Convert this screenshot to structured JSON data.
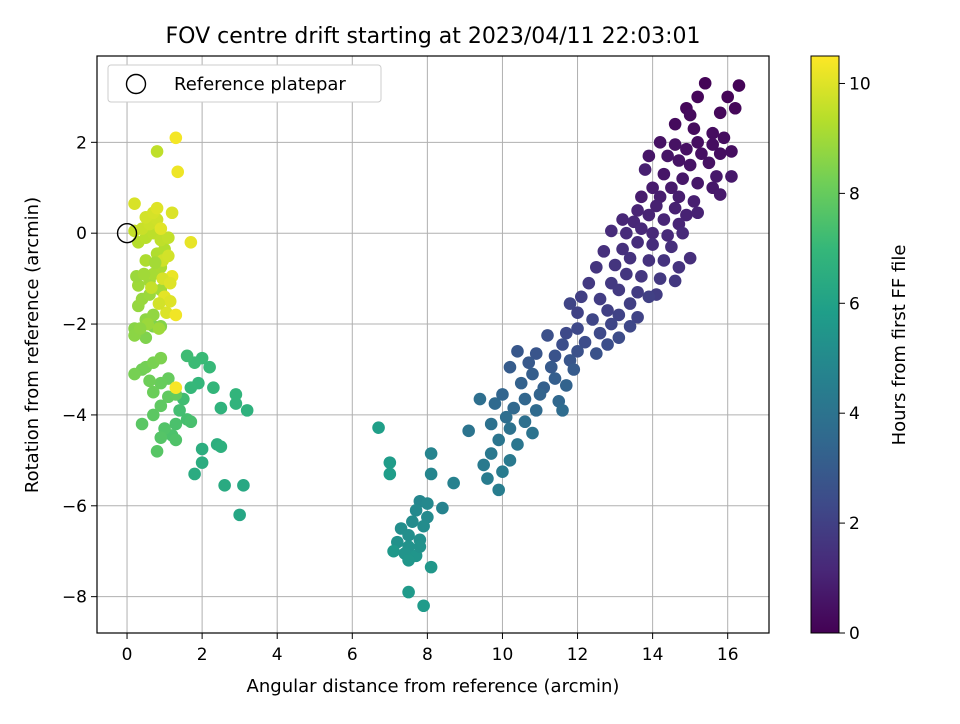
{
  "chart_data": {
    "type": "scatter",
    "title": "FOV centre drift starting at 2023/04/11 22:03:01",
    "xlabel": "Angular distance from reference (arcmin)",
    "ylabel": "Rotation from reference (arcmin)",
    "colorbar_label": "Hours from first FF file",
    "colormap": "viridis",
    "xlim": [
      -0.8,
      17.1
    ],
    "ylim": [
      -8.8,
      3.9
    ],
    "xticks": [
      0,
      2,
      4,
      6,
      8,
      10,
      12,
      14,
      16
    ],
    "yticks": [
      -8,
      -6,
      -4,
      -2,
      0,
      2
    ],
    "color_range": [
      0,
      10.5
    ],
    "colorbar_ticks": [
      0,
      2,
      4,
      6,
      8,
      10
    ],
    "grid": true,
    "legend": {
      "position": "top-left",
      "entries": [
        "Reference platepar"
      ]
    },
    "reference_point": {
      "x": 0,
      "y": 0,
      "label": "Reference platepar"
    },
    "points": [
      [
        15.4,
        3.3,
        0.1
      ],
      [
        16.3,
        3.25,
        0.1
      ],
      [
        16.0,
        3.0,
        0.1
      ],
      [
        15.2,
        3.0,
        0.15
      ],
      [
        14.9,
        2.75,
        0.2
      ],
      [
        15.8,
        2.65,
        0.2
      ],
      [
        16.2,
        2.75,
        0.2
      ],
      [
        15.0,
        2.6,
        0.3
      ],
      [
        14.6,
        2.4,
        0.3
      ],
      [
        15.1,
        2.3,
        0.3
      ],
      [
        15.6,
        2.2,
        0.35
      ],
      [
        15.9,
        2.1,
        0.35
      ],
      [
        15.2,
        2.0,
        0.4
      ],
      [
        15.6,
        1.95,
        0.4
      ],
      [
        16.1,
        1.8,
        0.4
      ],
      [
        15.8,
        1.75,
        0.4
      ],
      [
        15.3,
        1.75,
        0.45
      ],
      [
        14.9,
        1.85,
        0.45
      ],
      [
        14.6,
        1.95,
        0.5
      ],
      [
        14.2,
        2.0,
        0.5
      ],
      [
        15.5,
        1.55,
        0.5
      ],
      [
        15.0,
        1.5,
        0.55
      ],
      [
        14.7,
        1.6,
        0.55
      ],
      [
        14.4,
        1.7,
        0.6
      ],
      [
        13.9,
        1.7,
        0.6
      ],
      [
        14.3,
        1.3,
        0.6
      ],
      [
        14.8,
        1.2,
        0.65
      ],
      [
        15.2,
        1.1,
        0.65
      ],
      [
        15.7,
        1.25,
        0.7
      ],
      [
        16.1,
        1.25,
        0.7
      ],
      [
        15.6,
        1.0,
        0.7
      ],
      [
        15.8,
        0.85,
        0.75
      ],
      [
        14.5,
        1.0,
        0.75
      ],
      [
        14.0,
        1.0,
        0.8
      ],
      [
        13.7,
        0.8,
        0.8
      ],
      [
        14.2,
        0.8,
        0.85
      ],
      [
        14.7,
        0.8,
        0.85
      ],
      [
        15.1,
        0.7,
        0.9
      ],
      [
        13.8,
        1.4,
        0.9
      ],
      [
        14.1,
        0.6,
        0.95
      ],
      [
        14.6,
        0.55,
        0.95
      ],
      [
        14.9,
        0.4,
        1.0
      ],
      [
        15.2,
        0.45,
        1.0
      ],
      [
        13.6,
        0.5,
        1.05
      ],
      [
        13.9,
        0.4,
        1.05
      ],
      [
        14.3,
        0.3,
        1.1
      ],
      [
        14.7,
        0.2,
        1.1
      ],
      [
        13.5,
        0.25,
        1.15
      ],
      [
        13.2,
        0.3,
        1.15
      ],
      [
        13.7,
        0.1,
        1.2
      ],
      [
        14.0,
        0.0,
        1.2
      ],
      [
        14.4,
        -0.05,
        1.25
      ],
      [
        14.8,
        0.0,
        1.25
      ],
      [
        13.3,
        0.0,
        1.3
      ],
      [
        12.9,
        0.05,
        1.3
      ],
      [
        13.6,
        -0.2,
        1.35
      ],
      [
        14.0,
        -0.25,
        1.35
      ],
      [
        14.5,
        -0.3,
        1.4
      ],
      [
        15.0,
        -0.55,
        1.4
      ],
      [
        13.2,
        -0.35,
        1.45
      ],
      [
        12.7,
        -0.4,
        1.45
      ],
      [
        13.4,
        -0.55,
        1.5
      ],
      [
        13.9,
        -0.6,
        1.5
      ],
      [
        14.3,
        -0.6,
        1.55
      ],
      [
        14.7,
        -0.75,
        1.55
      ],
      [
        13.0,
        -0.7,
        1.6
      ],
      [
        12.5,
        -0.75,
        1.6
      ],
      [
        13.3,
        -0.9,
        1.65
      ],
      [
        13.7,
        -0.95,
        1.65
      ],
      [
        14.2,
        -1.0,
        1.7
      ],
      [
        14.6,
        -1.05,
        1.7
      ],
      [
        12.9,
        -1.1,
        1.75
      ],
      [
        12.3,
        -1.1,
        1.75
      ],
      [
        13.1,
        -1.25,
        1.8
      ],
      [
        13.6,
        -1.3,
        1.85
      ],
      [
        14.1,
        -1.35,
        1.85
      ],
      [
        12.6,
        -1.45,
        1.9
      ],
      [
        12.1,
        -1.4,
        1.95
      ],
      [
        13.4,
        -1.55,
        1.95
      ],
      [
        13.9,
        -1.4,
        2.0
      ],
      [
        12.8,
        -1.7,
        2.0
      ],
      [
        12.0,
        -1.75,
        2.05
      ],
      [
        13.1,
        -1.8,
        2.1
      ],
      [
        13.6,
        -1.85,
        2.1
      ],
      [
        11.8,
        -1.55,
        2.15
      ],
      [
        12.4,
        -1.9,
        2.2
      ],
      [
        12.9,
        -2.0,
        2.2
      ],
      [
        13.4,
        -2.05,
        2.25
      ],
      [
        12.0,
        -2.1,
        2.3
      ],
      [
        11.7,
        -2.2,
        2.3
      ],
      [
        12.6,
        -2.2,
        2.35
      ],
      [
        13.1,
        -2.3,
        2.4
      ],
      [
        12.2,
        -2.4,
        2.45
      ],
      [
        11.6,
        -2.45,
        2.5
      ],
      [
        12.8,
        -2.45,
        2.5
      ],
      [
        11.2,
        -2.25,
        2.55
      ],
      [
        12.0,
        -2.6,
        2.6
      ],
      [
        12.5,
        -2.65,
        2.65
      ],
      [
        11.4,
        -2.7,
        2.7
      ],
      [
        10.9,
        -2.65,
        2.75
      ],
      [
        11.8,
        -2.8,
        2.8
      ],
      [
        10.4,
        -2.6,
        2.85
      ],
      [
        10.7,
        -2.85,
        2.9
      ],
      [
        11.3,
        -2.95,
        2.95
      ],
      [
        11.9,
        -3.0,
        3.0
      ],
      [
        10.2,
        -2.95,
        3.05
      ],
      [
        10.8,
        -3.1,
        3.1
      ],
      [
        11.4,
        -3.2,
        3.15
      ],
      [
        11.1,
        -3.4,
        3.2
      ],
      [
        10.5,
        -3.3,
        3.25
      ],
      [
        11.7,
        -3.35,
        3.3
      ],
      [
        11.0,
        -3.55,
        3.35
      ],
      [
        10.0,
        -3.55,
        3.4
      ],
      [
        10.6,
        -3.65,
        3.45
      ],
      [
        11.5,
        -3.7,
        3.5
      ],
      [
        10.3,
        -3.85,
        3.55
      ],
      [
        9.8,
        -3.75,
        3.6
      ],
      [
        10.9,
        -3.9,
        3.65
      ],
      [
        11.6,
        -3.9,
        3.7
      ],
      [
        10.1,
        -4.05,
        3.75
      ],
      [
        9.4,
        -3.65,
        3.8
      ],
      [
        10.6,
        -4.15,
        3.85
      ],
      [
        9.7,
        -4.2,
        3.9
      ],
      [
        10.2,
        -4.3,
        3.95
      ],
      [
        10.8,
        -4.4,
        4.0
      ],
      [
        9.1,
        -4.35,
        4.05
      ],
      [
        9.9,
        -4.55,
        4.1
      ],
      [
        10.4,
        -4.65,
        4.15
      ],
      [
        9.7,
        -4.85,
        4.2
      ],
      [
        10.2,
        -5.0,
        4.25
      ],
      [
        9.5,
        -5.1,
        4.3
      ],
      [
        10.0,
        -5.25,
        4.35
      ],
      [
        9.6,
        -5.4,
        4.4
      ],
      [
        9.9,
        -5.65,
        4.45
      ],
      [
        8.7,
        -5.5,
        4.6
      ],
      [
        8.4,
        -6.05,
        4.7
      ],
      [
        8.1,
        -4.85,
        4.75
      ],
      [
        8.1,
        -5.3,
        4.8
      ],
      [
        7.8,
        -5.9,
        4.85
      ],
      [
        8.0,
        -5.95,
        4.9
      ],
      [
        7.7,
        -6.1,
        4.95
      ],
      [
        8.0,
        -6.25,
        5.0
      ],
      [
        7.6,
        -6.35,
        5.05
      ],
      [
        7.9,
        -6.45,
        5.1
      ],
      [
        7.3,
        -6.5,
        5.15
      ],
      [
        7.5,
        -6.65,
        5.2
      ],
      [
        7.8,
        -6.75,
        5.25
      ],
      [
        7.2,
        -6.8,
        5.3
      ],
      [
        7.5,
        -6.9,
        5.35
      ],
      [
        7.4,
        -7.05,
        5.4
      ],
      [
        7.7,
        -7.1,
        5.45
      ],
      [
        7.5,
        -7.2,
        5.5
      ],
      [
        8.1,
        -7.35,
        5.55
      ],
      [
        7.1,
        -7.0,
        5.6
      ],
      [
        7.5,
        -7.9,
        5.65
      ],
      [
        7.9,
        -8.2,
        5.7
      ],
      [
        7.0,
        -5.05,
        5.75
      ],
      [
        7.0,
        -5.3,
        5.8
      ],
      [
        6.7,
        -4.28,
        5.9
      ],
      [
        7.8,
        -6.9,
        5.35
      ],
      [
        3.0,
        -6.2,
        6.2
      ],
      [
        3.1,
        -5.55,
        6.3
      ],
      [
        2.6,
        -5.55,
        6.4
      ],
      [
        1.8,
        -5.3,
        6.45
      ],
      [
        2.0,
        -5.05,
        6.5
      ],
      [
        2.0,
        -4.75,
        6.55
      ],
      [
        2.4,
        -4.65,
        6.6
      ],
      [
        2.5,
        -4.7,
        6.65
      ],
      [
        3.2,
        -3.9,
        6.7
      ],
      [
        2.5,
        -3.85,
        6.75
      ],
      [
        2.9,
        -3.75,
        6.8
      ],
      [
        2.9,
        -3.55,
        6.85
      ],
      [
        2.3,
        -3.4,
        6.9
      ],
      [
        1.9,
        -3.3,
        6.95
      ],
      [
        1.7,
        -3.4,
        7.0
      ],
      [
        2.2,
        -2.95,
        7.05
      ],
      [
        2.0,
        -2.75,
        7.1
      ],
      [
        1.8,
        -2.85,
        7.15
      ],
      [
        1.6,
        -2.7,
        7.2
      ],
      [
        1.5,
        -3.65,
        7.25
      ],
      [
        1.4,
        -3.9,
        7.3
      ],
      [
        1.6,
        -4.1,
        7.35
      ],
      [
        1.7,
        -4.15,
        7.4
      ],
      [
        1.3,
        -4.2,
        7.45
      ],
      [
        1.2,
        -4.45,
        7.5
      ],
      [
        1.3,
        -4.55,
        7.55
      ],
      [
        1.0,
        -4.3,
        7.6
      ],
      [
        0.9,
        -4.5,
        7.65
      ],
      [
        0.8,
        -4.8,
        7.7
      ],
      [
        0.4,
        -4.2,
        7.75
      ],
      [
        0.7,
        -4.0,
        7.8
      ],
      [
        0.9,
        -3.8,
        7.85
      ],
      [
        1.1,
        -3.6,
        7.9
      ],
      [
        1.3,
        -3.55,
        7.95
      ],
      [
        1.1,
        -3.2,
        8.0
      ],
      [
        0.9,
        -3.3,
        8.05
      ],
      [
        0.7,
        -3.5,
        8.1
      ],
      [
        0.6,
        -3.25,
        8.15
      ],
      [
        0.4,
        -3.0,
        8.2
      ],
      [
        0.5,
        -2.95,
        8.25
      ],
      [
        0.2,
        -3.1,
        8.3
      ],
      [
        0.7,
        -2.85,
        8.35
      ],
      [
        0.9,
        -2.75,
        8.4
      ],
      [
        0.5,
        -2.3,
        8.45
      ],
      [
        0.7,
        -2.05,
        8.5
      ],
      [
        0.9,
        -2.05,
        8.55
      ],
      [
        0.2,
        -2.1,
        8.6
      ],
      [
        0.2,
        -2.25,
        8.65
      ],
      [
        0.5,
        -1.9,
        8.7
      ],
      [
        0.7,
        -1.8,
        8.75
      ],
      [
        0.3,
        -1.6,
        8.8
      ],
      [
        0.4,
        -1.45,
        8.85
      ],
      [
        0.6,
        -1.35,
        8.9
      ],
      [
        0.3,
        -1.15,
        8.95
      ],
      [
        0.6,
        -1.05,
        9.0
      ],
      [
        0.9,
        -1.25,
        9.05
      ],
      [
        0.7,
        -0.9,
        9.1
      ],
      [
        0.9,
        -0.75,
        9.15
      ],
      [
        0.5,
        -0.6,
        9.2
      ],
      [
        0.8,
        -0.45,
        9.25
      ],
      [
        1.0,
        -0.35,
        9.3
      ],
      [
        0.3,
        -0.2,
        9.35
      ],
      [
        0.5,
        -0.1,
        9.4
      ],
      [
        0.7,
        0.0,
        9.45
      ],
      [
        0.9,
        -0.15,
        9.5
      ],
      [
        1.1,
        -0.1,
        9.55
      ],
      [
        0.2,
        0.05,
        9.6
      ],
      [
        0.4,
        0.1,
        9.65
      ],
      [
        0.6,
        0.2,
        9.7
      ],
      [
        0.8,
        0.3,
        9.75
      ],
      [
        0.5,
        0.35,
        9.8
      ],
      [
        0.7,
        0.45,
        9.85
      ],
      [
        0.2,
        0.65,
        9.9
      ],
      [
        1.2,
        0.45,
        9.95
      ],
      [
        0.8,
        0.55,
        10.0
      ],
      [
        0.9,
        0.1,
        10.05
      ],
      [
        1.7,
        -0.2,
        10.15
      ],
      [
        1.35,
        1.35,
        10.25
      ],
      [
        1.2,
        -0.95,
        10.2
      ],
      [
        1.0,
        -1.4,
        10.1
      ],
      [
        1.15,
        -1.5,
        10.0
      ],
      [
        1.05,
        -1.75,
        9.95
      ],
      [
        1.3,
        -1.8,
        10.3
      ],
      [
        0.8,
        1.8,
        9.5
      ],
      [
        1.3,
        2.1,
        10.35
      ],
      [
        1.3,
        -3.4,
        10.4
      ],
      [
        0.95,
        -1.0,
        9.9
      ],
      [
        1.15,
        -1.1,
        10.0
      ],
      [
        0.85,
        -1.55,
        9.8
      ],
      [
        0.65,
        -1.2,
        9.6
      ],
      [
        0.95,
        -0.6,
        9.75
      ],
      [
        1.1,
        -0.5,
        9.8
      ],
      [
        0.55,
        -2.0,
        8.9
      ],
      [
        0.35,
        -2.1,
        8.7
      ],
      [
        0.85,
        -2.1,
        8.95
      ],
      [
        0.25,
        -0.95,
        8.9
      ],
      [
        0.45,
        -0.9,
        9.0
      ],
      [
        0.75,
        -0.65,
        9.05
      ]
    ]
  }
}
